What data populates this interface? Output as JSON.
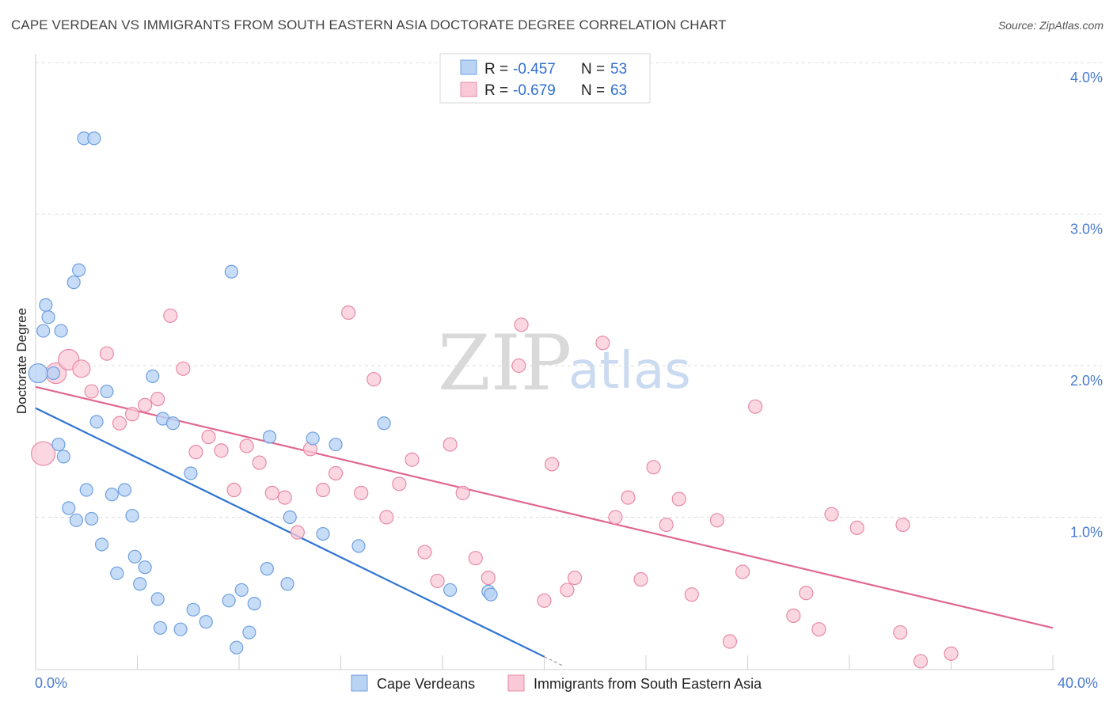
{
  "header": {
    "title": "CAPE VERDEAN VS IMMIGRANTS FROM SOUTH EASTERN ASIA DOCTORATE DEGREE CORRELATION CHART",
    "source": "Source: ZipAtlas.com"
  },
  "watermark": {
    "part1": "ZIP",
    "part2": "atlas"
  },
  "legend": {
    "series1": {
      "r_label": "R = ",
      "r_value": "-0.457",
      "n_label": "N = ",
      "n_value": "53"
    },
    "series2": {
      "r_label": "R = ",
      "r_value": "-0.679",
      "n_label": "N = ",
      "n_value": "63"
    }
  },
  "colors": {
    "blue_fill": "#b9d3f5",
    "blue_stroke": "#6f9fe0",
    "blue_line": "#2f73d3",
    "pink_fill": "#f9c9d7",
    "pink_stroke": "#e88aa7",
    "pink_line": "#e06790",
    "grid": "#dcdcdc",
    "axis_text": "#4a7bd0"
  },
  "chart_data": {
    "type": "scatter",
    "title": "CAPE VERDEAN VS IMMIGRANTS FROM SOUTH EASTERN ASIA DOCTORATE DEGREE CORRELATION CHART",
    "xlabel": "",
    "ylabel": "Doctorate Degree",
    "xlim": [
      0,
      40
    ],
    "ylim": [
      0,
      4.1
    ],
    "x_tick_labels": {
      "min": "0.0%",
      "max": "40.0%"
    },
    "y_ticks": [
      {
        "value": 1.0,
        "label": "1.0%"
      },
      {
        "value": 2.0,
        "label": "2.0%"
      },
      {
        "value": 3.0,
        "label": "3.0%"
      },
      {
        "value": 4.0,
        "label": "4.0%"
      }
    ],
    "series": [
      {
        "name": "Cape Verdeans",
        "color": "blue",
        "points": [
          [
            0.1,
            1.95
          ],
          [
            0.3,
            2.23
          ],
          [
            0.4,
            2.4
          ],
          [
            0.5,
            2.32
          ],
          [
            0.7,
            1.95
          ],
          [
            0.9,
            1.48
          ],
          [
            1.0,
            2.23
          ],
          [
            1.1,
            1.4
          ],
          [
            1.3,
            1.06
          ],
          [
            1.5,
            2.55
          ],
          [
            1.6,
            0.98
          ],
          [
            1.7,
            2.63
          ],
          [
            2.0,
            1.18
          ],
          [
            2.2,
            0.99
          ],
          [
            1.9,
            3.5
          ],
          [
            2.3,
            3.5
          ],
          [
            2.4,
            1.63
          ],
          [
            2.6,
            0.82
          ],
          [
            2.8,
            1.83
          ],
          [
            3.0,
            1.15
          ],
          [
            3.2,
            0.63
          ],
          [
            3.5,
            1.18
          ],
          [
            3.8,
            1.01
          ],
          [
            3.9,
            0.74
          ],
          [
            4.1,
            0.56
          ],
          [
            4.3,
            0.67
          ],
          [
            4.6,
            1.93
          ],
          [
            4.8,
            0.46
          ],
          [
            5.0,
            1.65
          ],
          [
            5.4,
            1.62
          ],
          [
            4.9,
            0.27
          ],
          [
            5.7,
            0.26
          ],
          [
            6.1,
            1.29
          ],
          [
            6.2,
            0.39
          ],
          [
            6.7,
            0.31
          ],
          [
            7.6,
            0.45
          ],
          [
            7.7,
            2.62
          ],
          [
            7.9,
            0.14
          ],
          [
            8.1,
            0.52
          ],
          [
            8.4,
            0.24
          ],
          [
            8.6,
            0.43
          ],
          [
            9.1,
            0.66
          ],
          [
            9.2,
            1.53
          ],
          [
            9.9,
            0.56
          ],
          [
            10.0,
            1.0
          ],
          [
            10.9,
            1.52
          ],
          [
            11.3,
            0.89
          ],
          [
            11.8,
            1.48
          ],
          [
            12.7,
            0.81
          ],
          [
            13.7,
            1.62
          ],
          [
            16.3,
            0.52
          ],
          [
            17.8,
            0.51
          ],
          [
            17.9,
            0.49
          ]
        ],
        "trend": {
          "x": [
            0,
            20
          ],
          "y": [
            1.72,
            0.08
          ],
          "extension_x": [
            20,
            20.7
          ]
        }
      },
      {
        "name": "Immigrants from South Eastern Asia",
        "color": "pink",
        "points": [
          [
            0.3,
            1.42
          ],
          [
            0.8,
            1.95
          ],
          [
            1.3,
            2.04
          ],
          [
            1.8,
            1.98
          ],
          [
            2.2,
            1.83
          ],
          [
            2.8,
            2.08
          ],
          [
            3.3,
            1.62
          ],
          [
            3.8,
            1.68
          ],
          [
            4.3,
            1.74
          ],
          [
            4.8,
            1.78
          ],
          [
            5.3,
            2.33
          ],
          [
            5.8,
            1.98
          ],
          [
            6.3,
            1.43
          ],
          [
            6.8,
            1.53
          ],
          [
            7.3,
            1.44
          ],
          [
            7.8,
            1.18
          ],
          [
            8.3,
            1.47
          ],
          [
            8.8,
            1.36
          ],
          [
            9.3,
            1.16
          ],
          [
            9.8,
            1.13
          ],
          [
            10.3,
            0.9
          ],
          [
            10.8,
            1.45
          ],
          [
            11.3,
            1.18
          ],
          [
            11.8,
            1.29
          ],
          [
            12.3,
            2.35
          ],
          [
            12.8,
            1.16
          ],
          [
            13.3,
            1.91
          ],
          [
            13.8,
            1.0
          ],
          [
            14.3,
            1.22
          ],
          [
            14.8,
            1.38
          ],
          [
            15.3,
            0.77
          ],
          [
            15.8,
            0.58
          ],
          [
            16.3,
            1.48
          ],
          [
            16.8,
            1.16
          ],
          [
            17.3,
            0.73
          ],
          [
            17.8,
            0.6
          ],
          [
            19.1,
            2.27
          ],
          [
            19.0,
            2.0
          ],
          [
            20.0,
            0.45
          ],
          [
            20.3,
            1.35
          ],
          [
            20.9,
            0.52
          ],
          [
            21.2,
            0.6
          ],
          [
            22.3,
            2.15
          ],
          [
            22.8,
            1.0
          ],
          [
            23.3,
            1.13
          ],
          [
            23.8,
            0.59
          ],
          [
            24.3,
            1.33
          ],
          [
            24.8,
            0.95
          ],
          [
            25.3,
            1.12
          ],
          [
            25.8,
            0.49
          ],
          [
            26.8,
            0.98
          ],
          [
            27.3,
            0.18
          ],
          [
            27.8,
            0.64
          ],
          [
            28.3,
            1.73
          ],
          [
            29.8,
            0.35
          ],
          [
            30.3,
            0.5
          ],
          [
            30.8,
            0.26
          ],
          [
            31.3,
            1.02
          ],
          [
            32.3,
            0.93
          ],
          [
            34.0,
            0.24
          ],
          [
            34.1,
            0.95
          ],
          [
            34.8,
            0.05
          ],
          [
            36.0,
            0.1
          ]
        ],
        "trend": {
          "x": [
            0,
            40
          ],
          "y": [
            1.86,
            0.27
          ]
        }
      }
    ],
    "legend": [
      "Cape Verdeans",
      "Immigrants from South Eastern Asia"
    ]
  }
}
